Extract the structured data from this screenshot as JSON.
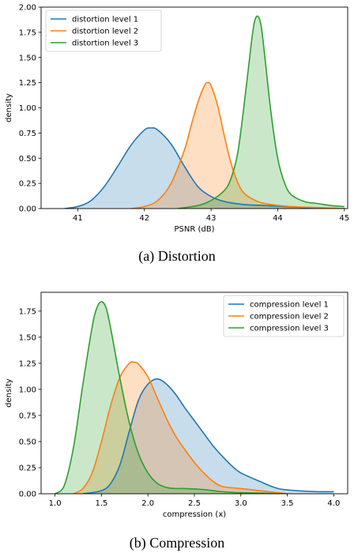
{
  "chart_data": [
    {
      "type": "area",
      "caption": "(a) Distortion",
      "xlabel": "PSNR (dB)",
      "ylabel": "density",
      "xlim": [
        40.45,
        45.05
      ],
      "ylim": [
        0,
        2.0
      ],
      "xticks": [
        41,
        42,
        43,
        44,
        45
      ],
      "yticks": [
        0.0,
        0.25,
        0.5,
        0.75,
        1.0,
        1.25,
        1.5,
        1.75,
        2.0
      ],
      "xtick_labels": [
        "41",
        "42",
        "43",
        "44",
        "45"
      ],
      "ytick_labels": [
        "0.00",
        "0.25",
        "0.50",
        "0.75",
        "1.00",
        "1.25",
        "1.50",
        "1.75",
        "2.00"
      ],
      "legend_position": "top-left",
      "grid": false,
      "series": [
        {
          "name": "distortion level 1",
          "color": "#1f77b4",
          "x": [
            40.8,
            41.0,
            41.2,
            41.4,
            41.6,
            41.8,
            42.0,
            42.1,
            42.2,
            42.4,
            42.6,
            42.8,
            43.0,
            43.2,
            43.5,
            43.8,
            44.1,
            44.4,
            44.7,
            45.0
          ],
          "y": [
            0.0,
            0.02,
            0.08,
            0.22,
            0.42,
            0.63,
            0.78,
            0.8,
            0.78,
            0.64,
            0.42,
            0.22,
            0.12,
            0.07,
            0.04,
            0.03,
            0.02,
            0.01,
            0.005,
            0.0
          ]
        },
        {
          "name": "distortion level 2",
          "color": "#ff7f0e",
          "x": [
            41.8,
            42.0,
            42.2,
            42.4,
            42.6,
            42.7,
            42.8,
            42.9,
            42.95,
            43.0,
            43.1,
            43.2,
            43.3,
            43.4,
            43.5,
            43.7,
            43.9,
            44.2,
            44.6,
            45.0
          ],
          "y": [
            0.0,
            0.02,
            0.08,
            0.25,
            0.58,
            0.82,
            1.05,
            1.22,
            1.25,
            1.22,
            1.02,
            0.72,
            0.45,
            0.26,
            0.15,
            0.07,
            0.04,
            0.02,
            0.01,
            0.0
          ]
        },
        {
          "name": "distortion level 3",
          "color": "#2ca02c",
          "x": [
            42.5,
            42.8,
            43.0,
            43.2,
            43.3,
            43.4,
            43.5,
            43.6,
            43.65,
            43.7,
            43.75,
            43.8,
            43.9,
            44.0,
            44.1,
            44.2,
            44.4,
            44.6,
            44.8,
            45.0
          ],
          "y": [
            0.0,
            0.03,
            0.08,
            0.18,
            0.3,
            0.55,
            1.05,
            1.62,
            1.85,
            1.91,
            1.82,
            1.55,
            0.95,
            0.5,
            0.26,
            0.14,
            0.07,
            0.05,
            0.03,
            0.02
          ]
        }
      ]
    },
    {
      "type": "area",
      "caption": "(b) Compression",
      "xlabel": "compression (x)",
      "ylabel": "density",
      "xlim": [
        0.85,
        4.15
      ],
      "ylim": [
        0,
        1.93
      ],
      "xticks": [
        1.0,
        1.5,
        2.0,
        2.5,
        3.0,
        3.5,
        4.0
      ],
      "yticks": [
        0.0,
        0.25,
        0.5,
        0.75,
        1.0,
        1.25,
        1.5,
        1.75
      ],
      "xtick_labels": [
        "1.0",
        "1.5",
        "2.0",
        "2.5",
        "3.0",
        "3.5",
        "4.0"
      ],
      "ytick_labels": [
        "0.00",
        "0.25",
        "0.50",
        "0.75",
        "1.00",
        "1.25",
        "1.50",
        "1.75"
      ],
      "legend_position": "top-right",
      "grid": false,
      "series": [
        {
          "name": "compression level 1",
          "color": "#1f77b4",
          "x": [
            1.3,
            1.5,
            1.6,
            1.7,
            1.8,
            1.9,
            2.0,
            2.1,
            2.2,
            2.3,
            2.4,
            2.5,
            2.6,
            2.7,
            2.8,
            2.9,
            3.0,
            3.2,
            3.4,
            3.6,
            3.8,
            4.0
          ],
          "y": [
            0.0,
            0.03,
            0.1,
            0.28,
            0.6,
            0.9,
            1.05,
            1.1,
            1.05,
            0.95,
            0.82,
            0.7,
            0.58,
            0.46,
            0.36,
            0.27,
            0.2,
            0.12,
            0.05,
            0.03,
            0.02,
            0.02
          ]
        },
        {
          "name": "compression level 2",
          "color": "#ff7f0e",
          "x": [
            1.2,
            1.3,
            1.4,
            1.5,
            1.6,
            1.7,
            1.8,
            1.85,
            1.9,
            2.0,
            2.1,
            2.2,
            2.3,
            2.4,
            2.5,
            2.6,
            2.7,
            2.8,
            3.0,
            3.2,
            3.5
          ],
          "y": [
            0.0,
            0.05,
            0.2,
            0.5,
            0.85,
            1.12,
            1.25,
            1.26,
            1.24,
            1.12,
            0.92,
            0.72,
            0.55,
            0.42,
            0.3,
            0.2,
            0.12,
            0.07,
            0.05,
            0.03,
            0.0
          ]
        },
        {
          "name": "compression level 3",
          "color": "#2ca02c",
          "x": [
            1.0,
            1.1,
            1.2,
            1.3,
            1.4,
            1.45,
            1.5,
            1.55,
            1.6,
            1.7,
            1.8,
            1.9,
            2.0,
            2.1,
            2.2,
            2.3,
            2.4,
            2.6,
            2.8,
            3.0,
            3.5
          ],
          "y": [
            0.0,
            0.08,
            0.45,
            1.05,
            1.6,
            1.78,
            1.84,
            1.78,
            1.58,
            1.1,
            0.68,
            0.38,
            0.2,
            0.1,
            0.06,
            0.05,
            0.05,
            0.04,
            0.02,
            0.01,
            0.0
          ]
        }
      ]
    }
  ]
}
